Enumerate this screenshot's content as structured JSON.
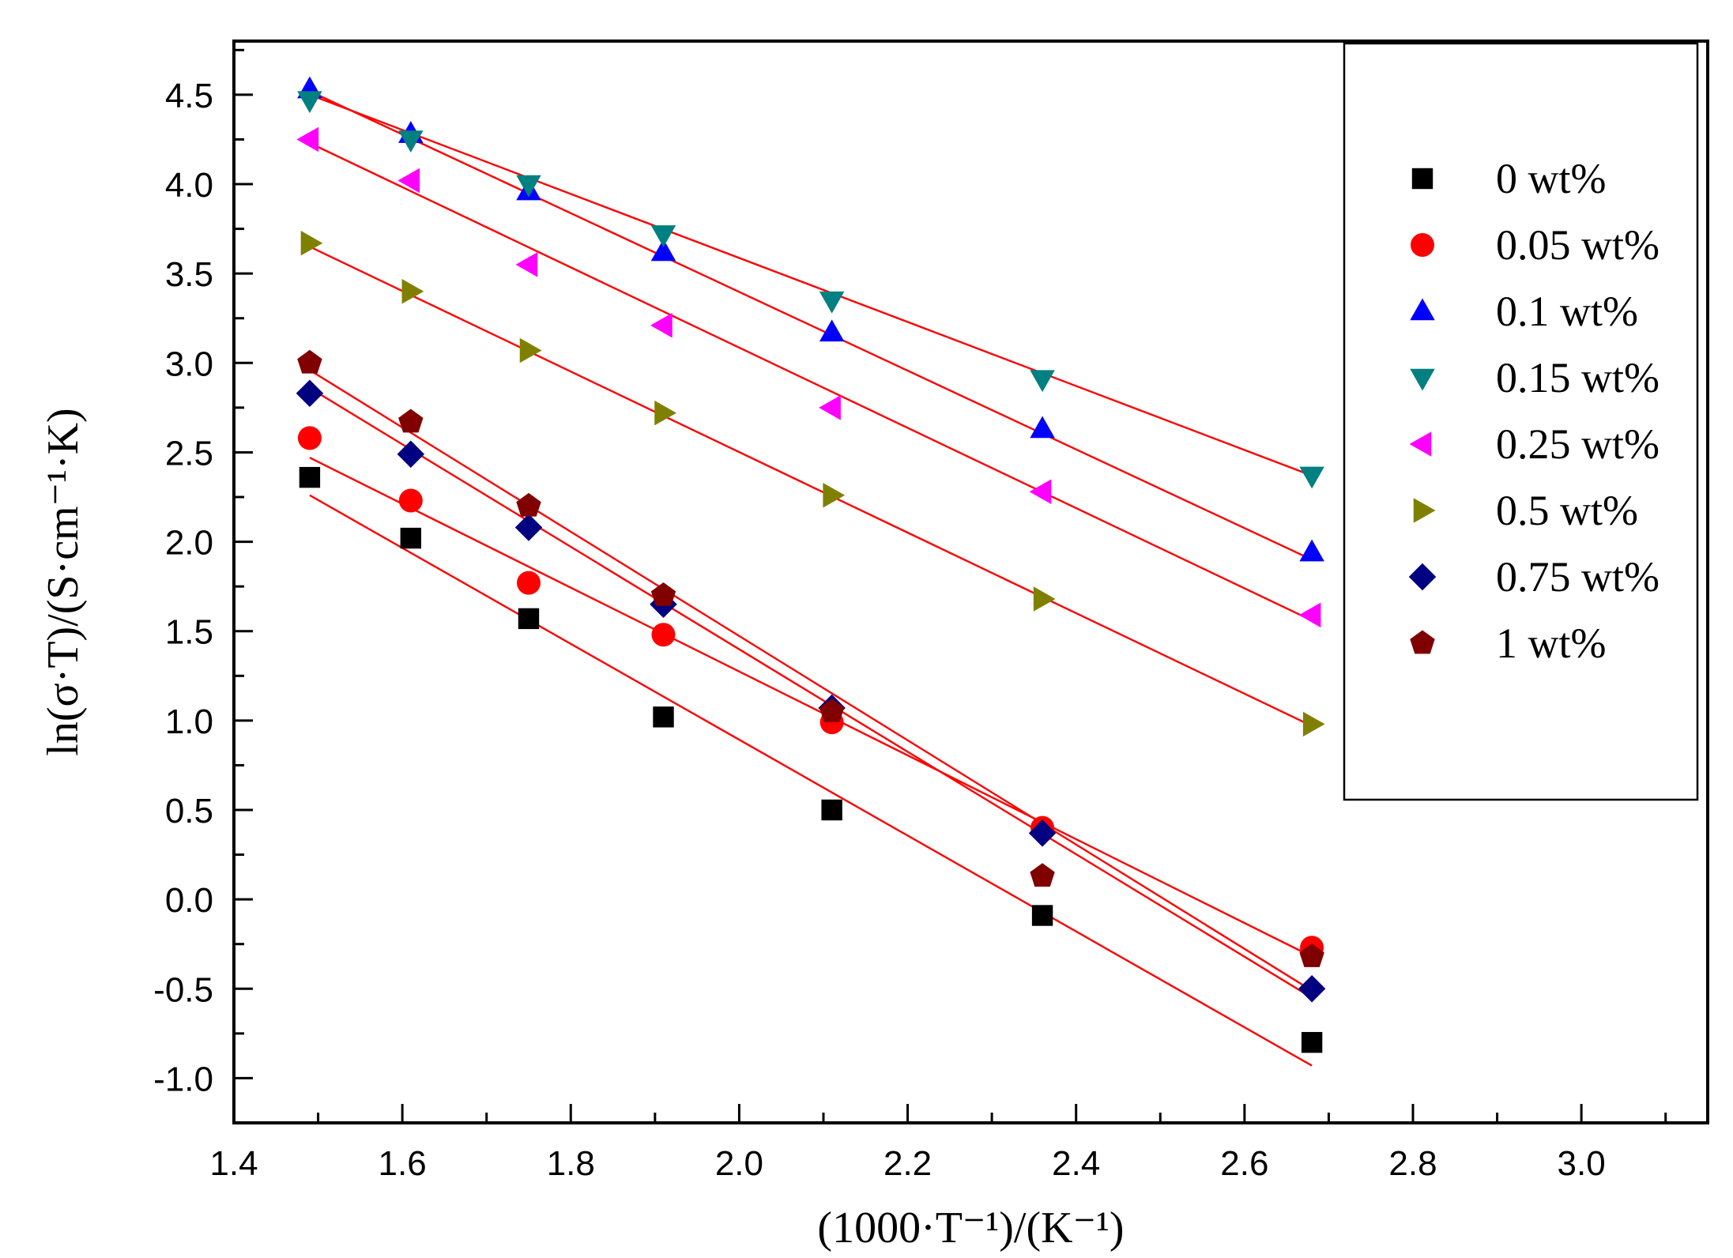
{
  "chart_data": {
    "type": "scatter",
    "title": "",
    "xlabel": "(1000·T⁻¹)/(K⁻¹)",
    "ylabel": "ln(σ·T)/(S·cm⁻¹·K)",
    "xlim": [
      1.4,
      3.15
    ],
    "ylim": [
      -1.25,
      4.8
    ],
    "xticks": [
      "1.4",
      "1.6",
      "1.8",
      "2.0",
      "2.2",
      "2.4",
      "2.6",
      "2.8",
      "3.0"
    ],
    "xtick_values": [
      1.4,
      1.6,
      1.8,
      2.0,
      2.2,
      2.4,
      2.6,
      2.8,
      3.0
    ],
    "yticks": [
      "-1.0",
      "-0.5",
      "0.0",
      "0.5",
      "1.0",
      "1.5",
      "2.0",
      "2.5",
      "3.0",
      "3.5",
      "4.0",
      "4.5"
    ],
    "ytick_values": [
      -1.0,
      -0.5,
      0.0,
      0.5,
      1.0,
      1.5,
      2.0,
      2.5,
      3.0,
      3.5,
      4.0,
      4.5
    ],
    "grid": false,
    "legend_position": "top-right",
    "fit_line_color": "#ff0000",
    "x": [
      1.49,
      1.61,
      1.75,
      1.91,
      2.11,
      2.36,
      2.68
    ],
    "series": [
      {
        "name": "0 wt%",
        "marker": "square",
        "color": "#000000",
        "values": [
          2.36,
          2.02,
          1.57,
          1.02,
          0.5,
          -0.09,
          -0.8
        ],
        "fit": [
          [
            1.49,
            2.26
          ],
          [
            2.68,
            -0.93
          ]
        ]
      },
      {
        "name": "0.05 wt%",
        "marker": "circle",
        "color": "#ff0000",
        "values": [
          2.58,
          2.23,
          1.77,
          1.48,
          0.99,
          0.4,
          -0.27
        ],
        "fit": [
          [
            1.49,
            2.47
          ],
          [
            2.68,
            -0.32
          ]
        ]
      },
      {
        "name": "0.1 wt%",
        "marker": "triangle-up",
        "color": "#0000ff",
        "values": [
          4.53,
          4.28,
          3.96,
          3.62,
          3.17,
          2.63,
          1.94
        ],
        "fit": [
          [
            1.49,
            4.52
          ],
          [
            2.68,
            1.9
          ]
        ]
      },
      {
        "name": "0.15 wt%",
        "marker": "triangle-down",
        "color": "#008080",
        "values": [
          4.47,
          4.25,
          4.0,
          3.72,
          3.35,
          2.91,
          2.37
        ],
        "fit": [
          [
            1.49,
            4.5
          ],
          [
            2.68,
            2.37
          ]
        ]
      },
      {
        "name": "0.25 wt%",
        "marker": "triangle-left",
        "color": "#ff00ff",
        "values": [
          4.25,
          4.02,
          3.55,
          3.21,
          2.75,
          2.28,
          1.59
        ],
        "fit": [
          [
            1.49,
            4.23
          ],
          [
            2.68,
            1.56
          ]
        ]
      },
      {
        "name": "0.5 wt%",
        "marker": "triangle-right",
        "color": "#808000",
        "values": [
          3.67,
          3.4,
          3.07,
          2.72,
          2.26,
          1.68,
          0.98
        ],
        "fit": [
          [
            1.49,
            3.65
          ],
          [
            2.68,
            0.97
          ]
        ]
      },
      {
        "name": "0.75 wt%",
        "marker": "diamond",
        "color": "#000080",
        "values": [
          2.83,
          2.49,
          2.08,
          1.65,
          1.07,
          0.37,
          -0.5
        ],
        "fit": [
          [
            1.49,
            2.86
          ],
          [
            2.68,
            -0.55
          ]
        ]
      },
      {
        "name": "1 wt%",
        "marker": "pentagon",
        "color": "#800000",
        "values": [
          3.0,
          2.67,
          2.2,
          1.7,
          1.05,
          0.13,
          -0.32
        ],
        "fit": [
          [
            1.49,
            2.96
          ],
          [
            2.68,
            -0.51
          ]
        ]
      }
    ]
  }
}
